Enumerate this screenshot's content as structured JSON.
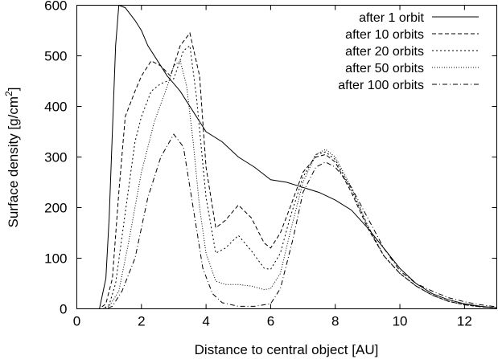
{
  "chart_data": {
    "type": "line",
    "xlabel": "Distance to central object [AU]",
    "ylabel": "Surface density [g/cm",
    "ylabel_sup": "2",
    "ylabel_end": "]",
    "xlim": [
      0,
      13
    ],
    "ylim": [
      0,
      600
    ],
    "xticks": [
      0,
      2,
      4,
      6,
      8,
      10,
      12
    ],
    "yticks": [
      0,
      100,
      200,
      300,
      400,
      500,
      600
    ],
    "grid": false,
    "legend_position": "top-right",
    "series": [
      {
        "name": "after 1 orbit",
        "dash": "",
        "x": [
          0,
          0.7,
          0.9,
          1.0,
          1.1,
          1.2,
          1.3,
          1.5,
          1.8,
          2.0,
          2.2,
          2.5,
          2.8,
          3.0,
          3.2,
          3.4,
          3.6,
          3.8,
          4.0,
          4.5,
          5.0,
          5.5,
          6.0,
          6.5,
          7.0,
          7.5,
          8.0,
          8.5,
          9.0,
          9.5,
          10.0,
          10.5,
          11.0,
          11.5,
          12.0,
          12.5,
          13.0
        ],
        "y": [
          0,
          0,
          60,
          180,
          350,
          520,
          600,
          595,
          570,
          550,
          520,
          490,
          460,
          445,
          430,
          410,
          390,
          370,
          350,
          330,
          300,
          280,
          255,
          250,
          240,
          230,
          215,
          195,
          160,
          120,
          80,
          50,
          30,
          18,
          10,
          5,
          2
        ]
      },
      {
        "name": "after 10 orbits",
        "dash": "5,3",
        "x": [
          0,
          0.7,
          0.9,
          1.1,
          1.3,
          1.5,
          1.8,
          2.0,
          2.3,
          2.6,
          2.9,
          3.2,
          3.5,
          3.8,
          4.0,
          4.3,
          4.6,
          5.0,
          5.4,
          5.8,
          6.0,
          6.3,
          6.6,
          7.0,
          7.4,
          7.7,
          8.0,
          8.5,
          9.0,
          9.5,
          10.0,
          10.5,
          11.0,
          11.5,
          12.0,
          12.5,
          13.0
        ],
        "y": [
          0,
          0,
          10,
          60,
          230,
          380,
          430,
          460,
          490,
          480,
          460,
          520,
          545,
          460,
          280,
          160,
          175,
          205,
          180,
          130,
          120,
          150,
          200,
          270,
          300,
          305,
          290,
          230,
          160,
          105,
          70,
          45,
          27,
          15,
          8,
          4,
          2
        ]
      },
      {
        "name": "after 20 orbits",
        "dash": "2,3",
        "x": [
          0,
          0.8,
          1.0,
          1.2,
          1.5,
          1.8,
          2.0,
          2.3,
          2.6,
          3.0,
          3.3,
          3.5,
          3.7,
          4.0,
          4.3,
          4.6,
          5.0,
          5.4,
          5.8,
          6.0,
          6.3,
          6.6,
          7.0,
          7.4,
          7.7,
          8.0,
          8.5,
          9.0,
          9.5,
          10.0,
          10.5,
          11.0,
          11.5,
          12.0,
          12.5,
          13.0
        ],
        "y": [
          0,
          0,
          8,
          50,
          190,
          330,
          380,
          430,
          445,
          455,
          510,
          520,
          420,
          220,
          110,
          120,
          145,
          115,
          80,
          78,
          110,
          180,
          260,
          305,
          310,
          295,
          235,
          165,
          105,
          70,
          45,
          27,
          15,
          8,
          4,
          2
        ]
      },
      {
        "name": "after 50 orbits",
        "dash": "1,2",
        "x": [
          0,
          0.8,
          1.0,
          1.3,
          1.6,
          2.0,
          2.4,
          2.8,
          3.0,
          3.2,
          3.4,
          3.6,
          3.8,
          4.0,
          4.3,
          4.6,
          5.0,
          5.4,
          5.8,
          6.0,
          6.3,
          6.6,
          7.0,
          7.4,
          7.7,
          8.0,
          8.5,
          9.0,
          9.5,
          10.0,
          10.5,
          11.0,
          11.5,
          12.0,
          12.5,
          13.0
        ],
        "y": [
          0,
          0,
          5,
          35,
          130,
          270,
          370,
          440,
          480,
          490,
          440,
          330,
          200,
          110,
          55,
          48,
          48,
          45,
          38,
          40,
          70,
          150,
          250,
          305,
          315,
          300,
          240,
          165,
          105,
          70,
          45,
          27,
          15,
          8,
          4,
          2
        ]
      },
      {
        "name": "after 100 orbits",
        "dash": "6,3,1,3",
        "x": [
          0,
          0.9,
          1.1,
          1.4,
          1.8,
          2.2,
          2.6,
          3.0,
          3.3,
          3.6,
          3.9,
          4.2,
          4.5,
          5.0,
          5.5,
          6.0,
          6.3,
          6.7,
          7.0,
          7.4,
          7.7,
          8.0,
          8.5,
          9.0,
          9.5,
          10.0,
          10.5,
          11.0,
          11.5,
          12.0,
          12.5,
          13.0
        ],
        "y": [
          0,
          0,
          5,
          35,
          100,
          220,
          300,
          345,
          320,
          200,
          80,
          30,
          12,
          5,
          5,
          10,
          40,
          140,
          230,
          280,
          290,
          280,
          240,
          180,
          120,
          75,
          50,
          35,
          22,
          14,
          8,
          4
        ]
      }
    ]
  }
}
